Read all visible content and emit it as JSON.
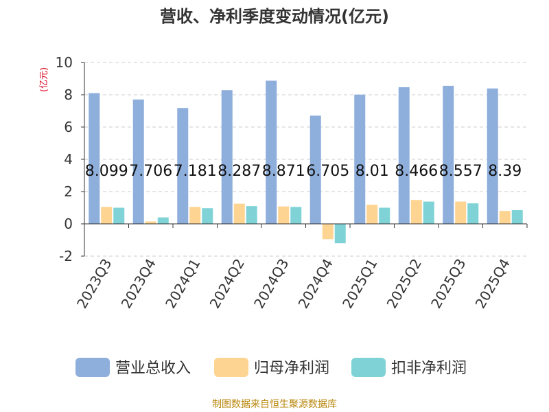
{
  "chart_data": {
    "type": "bar",
    "title": "营收、净利季度变动情况(亿元)",
    "ylabel": "(亿元)",
    "ylim": [
      -2,
      10
    ],
    "yticks": [
      -2,
      0,
      2,
      4,
      6,
      8,
      10
    ],
    "grid": true,
    "legend_position": "bottom",
    "categories": [
      "2023Q3",
      "2023Q4",
      "2024Q1",
      "2024Q2",
      "2024Q3",
      "2024Q4",
      "2025Q1",
      "2025Q2",
      "2025Q3",
      "2025Q4"
    ],
    "series": [
      {
        "name": "营业总收入",
        "color": "#8eaedc",
        "values": [
          8.099,
          7.706,
          7.181,
          8.287,
          8.871,
          6.705,
          8.01,
          8.466,
          8.557,
          8.39
        ],
        "labels": [
          "8.099",
          "7.706",
          "7.181",
          "8.287",
          "8.871",
          "6.705",
          "8.01",
          "8.466",
          "8.557",
          "8.39"
        ]
      },
      {
        "name": "归母净利润",
        "color": "#fdd491",
        "values": [
          1.05,
          0.15,
          1.05,
          1.25,
          1.08,
          -0.95,
          1.18,
          1.48,
          1.38,
          0.8
        ]
      },
      {
        "name": "扣非净利润",
        "color": "#7fd3d6",
        "values": [
          1.0,
          0.4,
          0.97,
          1.1,
          1.05,
          -1.2,
          1.0,
          1.38,
          1.27,
          0.85
        ]
      }
    ]
  },
  "source": "制图数据来自恒生聚源数据库",
  "colors": {
    "axis_label": "#d9001b",
    "text": "#333333",
    "grid": "#cccccc",
    "source": "#b8860b"
  }
}
